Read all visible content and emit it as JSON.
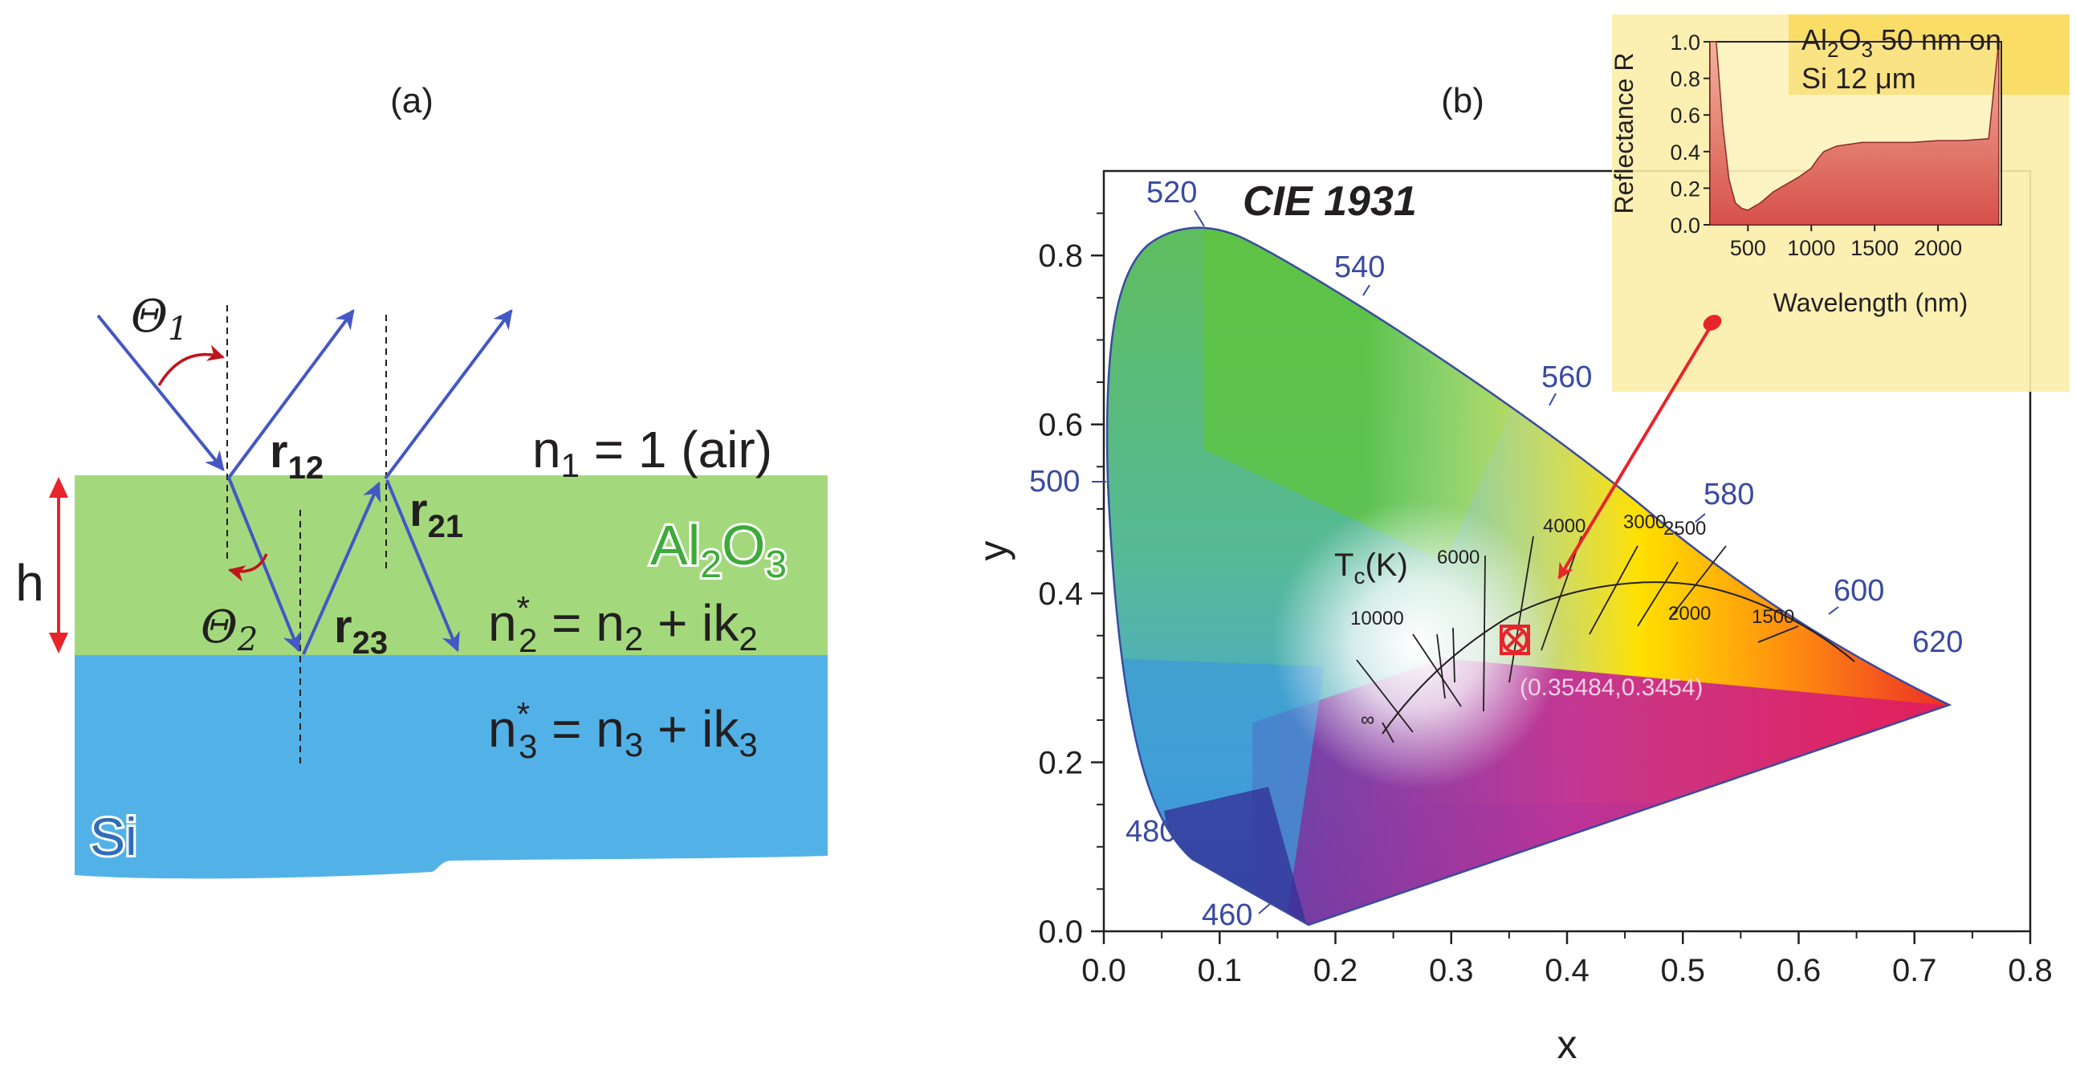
{
  "panel_a": {
    "label": "(a)",
    "theta1": "Θ",
    "theta1_sub": "1",
    "theta2": "Θ",
    "theta2_sub": "2",
    "r12": "r",
    "r12_sub": "12",
    "r21": "r",
    "r21_sub": "21",
    "r23": "r",
    "r23_sub": "23",
    "h": "h",
    "n1": "n",
    "n1_sub": "1",
    "n1_rest": " = 1 (air)",
    "al2o3": [
      "Al",
      "2",
      "O",
      "3"
    ],
    "n2": "n",
    "n2_sup": "*",
    "n2_sub": "2",
    "n2_mid": " = n",
    "n2_sub2": "2",
    "n2_end": " + ik",
    "n2_sub3": "2",
    "n3": "n",
    "n3_sup": "*",
    "n3_sub": "3",
    "n3_mid": " = n",
    "n3_sub2": "3",
    "n3_end": " + ik",
    "n3_sub3": "3",
    "si": "Si",
    "colors": {
      "al2o3_layer": "#a3d97c",
      "si_layer": "#52b2e7",
      "rays": "#4457c4",
      "arrow_red": "#c0141c",
      "al2o3_text": "#3eaa3a"
    }
  },
  "panel_b": {
    "label": "(b)",
    "title": "CIE 1931",
    "xlabel": "x",
    "ylabel": "y",
    "x_ticks": [
      "0.0",
      "0.1",
      "0.2",
      "0.3",
      "0.4",
      "0.5",
      "0.6",
      "0.7",
      "0.8"
    ],
    "y_ticks": [
      "0.0",
      "0.2",
      "0.4",
      "0.6",
      "0.8"
    ],
    "wavelength_labels": [
      "520",
      "540",
      "560",
      "580",
      "600",
      "620",
      "500",
      "480",
      "460"
    ],
    "tc_label": "T",
    "tc_sub": "c",
    "tc_unit": "(K)",
    "temps": [
      "10000",
      "6000",
      "4000",
      "3000",
      "2500",
      "2000",
      "1500",
      "∞"
    ],
    "point_label": "(0.35484,0.3454)",
    "inset": {
      "ylabel": "Reflectance R",
      "xlabel": "Wavelength (nm)",
      "y_ticks": [
        "1.0",
        "0.8",
        "0.6",
        "0.4",
        "0.2",
        "0.0"
      ],
      "x_ticks": [
        "500",
        "1000",
        "1500",
        "2000"
      ],
      "legend_line1": [
        "Al",
        "2",
        "O",
        "3",
        " 50 nm on"
      ],
      "legend_line2": "Si 12 μm"
    }
  },
  "chart_data": {
    "type": "scatter",
    "title": "CIE 1931",
    "xlabel": "x",
    "ylabel": "y",
    "xlim": [
      0.0,
      0.8
    ],
    "ylim": [
      0.0,
      0.9
    ],
    "series": [
      {
        "name": "Al2O3 50 nm on Si 12 um color point",
        "x": [
          0.35484
        ],
        "y": [
          0.3454
        ]
      },
      {
        "name": "Spectral locus (nm)",
        "labels": [
          "460",
          "480",
          "500",
          "520",
          "540",
          "560",
          "580",
          "600",
          "620"
        ],
        "x": [
          0.144,
          0.091,
          0.008,
          0.074,
          0.23,
          0.373,
          0.512,
          0.627,
          0.691
        ],
        "y": [
          0.03,
          0.133,
          0.538,
          0.834,
          0.754,
          0.624,
          0.487,
          0.372,
          0.308
        ]
      },
      {
        "name": "Planckian locus T_c (K)",
        "labels": [
          "∞",
          "10000",
          "6000",
          "4000",
          "3000",
          "2500",
          "2000",
          "1500"
        ],
        "x": [
          0.24,
          0.281,
          0.322,
          0.38,
          0.437,
          0.477,
          0.527,
          0.586
        ],
        "y": [
          0.234,
          0.288,
          0.332,
          0.377,
          0.404,
          0.414,
          0.413,
          0.393
        ]
      }
    ],
    "inset": {
      "type": "line",
      "xlabel": "Wavelength (nm)",
      "ylabel": "Reflectance R",
      "xlim": [
        200,
        2500
      ],
      "ylim": [
        0.0,
        1.0
      ],
      "series": [
        {
          "name": "Reflectance",
          "x": [
            200,
            250,
            300,
            350,
            400,
            450,
            500,
            600,
            700,
            800,
            900,
            1000,
            1050,
            1100,
            1200,
            1300,
            1400,
            1600,
            1800,
            2000,
            2200,
            2400,
            2480
          ],
          "y": [
            1.0,
            1.0,
            0.55,
            0.25,
            0.12,
            0.09,
            0.08,
            0.12,
            0.18,
            0.22,
            0.26,
            0.31,
            0.36,
            0.4,
            0.43,
            0.44,
            0.45,
            0.45,
            0.45,
            0.46,
            0.46,
            0.47,
            1.0
          ]
        }
      ]
    }
  }
}
